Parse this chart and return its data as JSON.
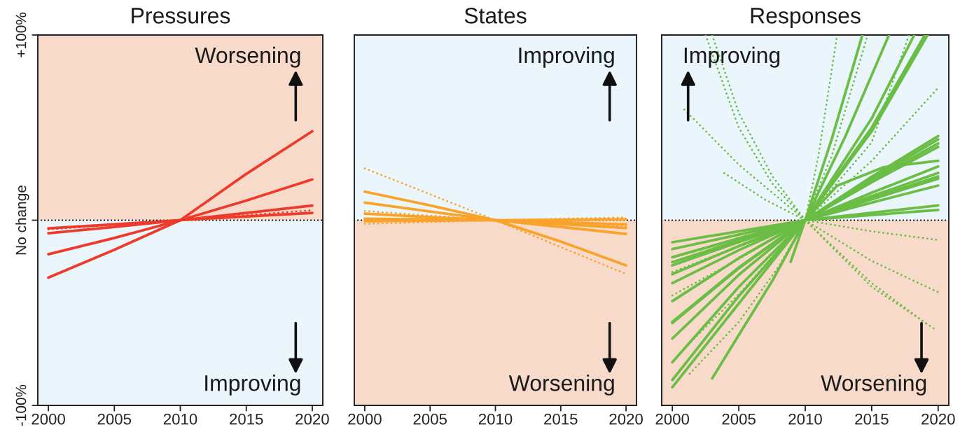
{
  "chart_data": [
    {
      "type": "line",
      "title": "Pressures",
      "x": [
        2000,
        2005,
        2010,
        2015,
        2020
      ],
      "series": [
        {
          "color": "#ee3a2a",
          "values": [
            -31,
            -16,
            0,
            25,
            48
          ]
        },
        {
          "color": "#ee3a2a",
          "values": [
            -18.4,
            -9.6,
            0,
            10.6,
            22
          ]
        },
        {
          "color": "#ee3a2a",
          "values": [
            -7,
            -3.6,
            0,
            3.9,
            7.9
          ]
        },
        {
          "color": "#ee3a2a",
          "values": [
            -4.4,
            -2.2,
            0,
            2,
            3.9
          ]
        },
        {
          "color": "#ee3a2a",
          "line_style": "dotted",
          "x": [
            2000,
            2010,
            2020
          ],
          "values": [
            -5,
            0,
            5.4
          ]
        }
      ],
      "xlim": [
        1999.2,
        2020.8
      ],
      "ylim": [
        -100,
        100
      ],
      "xticks": [
        2000,
        2005,
        2010,
        2015,
        2020
      ],
      "yticks": [
        {
          "value": -100,
          "label": "-100%"
        },
        {
          "value": 0,
          "label": "No change"
        },
        {
          "value": 100,
          "label": "+100%"
        }
      ],
      "bands": [
        {
          "axis": "y",
          "from": 0,
          "to": 100,
          "label": "Worsening",
          "color": "#f8dacb"
        },
        {
          "axis": "y",
          "from": -100,
          "to": 0,
          "label": "Improving",
          "color": "#eaf6fb"
        }
      ],
      "ref_lines": [
        {
          "axis": "y",
          "value": 0,
          "color": "#000000",
          "line_style": "dotted"
        }
      ]
    },
    {
      "type": "line",
      "title": "States",
      "x": [
        2000,
        2005,
        2010,
        2015,
        2020
      ],
      "series": [
        {
          "color": "#f9a32b",
          "values": [
            15.4,
            8,
            0,
            -11.5,
            -24.4
          ]
        },
        {
          "color": "#f9a32b",
          "values": [
            9.5,
            4.7,
            0,
            -3.6,
            -7.4
          ]
        },
        {
          "color": "#f9a32b",
          "values": [
            3.5,
            1.7,
            0,
            -2.1,
            -4.2
          ]
        },
        {
          "color": "#f9a32b",
          "values": [
            0.8,
            0.4,
            0,
            -1.1,
            -2.3
          ]
        },
        {
          "color": "#f9a32b",
          "values": [
            -0.5,
            -0.2,
            0,
            0.2,
            0.5
          ]
        },
        {
          "color": "#f9a32b",
          "line_style": "dotted",
          "values": [
            28,
            14,
            0,
            -14.5,
            -29
          ]
        },
        {
          "color": "#f9a32b",
          "line_style": "dotted",
          "values": [
            5,
            2.5,
            0,
            -1.5,
            -3
          ]
        },
        {
          "color": "#f9a32b",
          "line_style": "dotted",
          "values": [
            -2,
            -1,
            0,
            0.8,
            1.5
          ]
        }
      ],
      "xlim": [
        1999.2,
        2020.8
      ],
      "ylim": [
        -100,
        100
      ],
      "xticks": [
        2000,
        2005,
        2010,
        2015,
        2020
      ],
      "tick_labels": "x",
      "bands": [
        {
          "axis": "y",
          "from": 0,
          "to": 100,
          "label": "Improving",
          "color": "#eaf6fb"
        },
        {
          "axis": "y",
          "from": -100,
          "to": 0,
          "label": "Worsening",
          "color": "#f8dacb"
        }
      ],
      "ref_lines": [
        {
          "axis": "y",
          "value": 0,
          "color": "#000000",
          "line_style": "dotted"
        }
      ]
    },
    {
      "type": "line",
      "title": "Responses",
      "x": [
        2000,
        2005,
        2010,
        2015,
        2020
      ],
      "series": [
        {
          "color": "#6abd45",
          "values": [
            -11.9,
            -6,
            0,
            2.8,
            5.5
          ]
        },
        {
          "color": "#6abd45",
          "values": [
            -15.6,
            -7.8,
            0,
            4,
            8
          ]
        },
        {
          "color": "#6abd45",
          "values": [
            -20,
            -9.8,
            0,
            9.5,
            18.7
          ]
        },
        {
          "color": "#6abd45",
          "values": [
            -22.7,
            -11,
            0,
            11.3,
            22.4
          ]
        },
        {
          "color": "#6abd45",
          "values": [
            -24.4,
            -11.8,
            0,
            12,
            23.6
          ]
        },
        {
          "color": "#6abd45",
          "values": [
            -29.1,
            -14,
            0,
            13,
            25.5
          ]
        },
        {
          "color": "#6abd45",
          "values": [
            -34,
            -16.2,
            0,
            14.8,
            29
          ]
        },
        {
          "color": "#6abd45",
          "values": [
            -43.7,
            -20.5,
            0,
            20.5,
            39.6
          ]
        },
        {
          "color": "#6abd45",
          "values": [
            -54.9,
            -25.5,
            0,
            21.5,
            41.4
          ]
        },
        {
          "color": "#6abd45",
          "values": [
            -55.5,
            -26,
            0,
            22.5,
            43.6
          ]
        },
        {
          "color": "#6abd45",
          "values": [
            -63.9,
            -29.5,
            0,
            23.5,
            45.4
          ]
        },
        {
          "color": "#6abd45",
          "x": [
            2000,
            2005,
            2010,
            2015,
            2019.2
          ],
          "values": [
            -76.7,
            -36,
            0,
            48,
            100
          ]
        },
        {
          "color": "#6abd45",
          "x": [
            2000,
            2005,
            2010,
            2015,
            2019
          ],
          "values": [
            -86.3,
            -41,
            0,
            50,
            100
          ]
        },
        {
          "color": "#6abd45",
          "x": [
            2000,
            2005,
            2010,
            2015,
            2018.2
          ],
          "values": [
            -90.2,
            -45,
            0,
            55,
            100
          ]
        },
        {
          "color": "#6abd45",
          "x": [
            2003,
            2005,
            2007.5,
            2010,
            2013,
            2016.3
          ],
          "values": [
            -85.4,
            -62,
            -33,
            0,
            45,
            100
          ]
        },
        {
          "color": "#6abd45",
          "x": [
            2008.9,
            2010,
            2012,
            2014.3
          ],
          "values": [
            -22.5,
            0,
            44,
            100
          ]
        },
        {
          "color": "#6abd45",
          "x": [
            2005,
            2010,
            2012.4,
            2015.9,
            2020
          ],
          "values": [
            -14,
            0,
            18.6,
            28.6,
            32.1
          ]
        },
        {
          "color": "#6abd45",
          "line_style": "dotted",
          "x": [
            2002.5,
            2005,
            2007.5,
            2010,
            2015,
            2019.7
          ],
          "values": [
            100,
            50,
            20,
            0,
            -36,
            -58.6
          ]
        },
        {
          "color": "#6abd45",
          "line_style": "dotted",
          "x": [
            2003,
            2005,
            2007.5,
            2010,
            2015,
            2019.3
          ],
          "values": [
            100,
            58,
            24,
            0,
            -34,
            -56.8
          ]
        },
        {
          "color": "#6abd45",
          "line_style": "dotted",
          "x": [
            2000.9,
            2005,
            2010,
            2015,
            2020
          ],
          "values": [
            59.8,
            30,
            0,
            -22,
            -38.9
          ]
        },
        {
          "color": "#6abd45",
          "line_style": "dotted",
          "x": [
            2003.9,
            2007,
            2010,
            2015,
            2020
          ],
          "values": [
            25.5,
            11,
            0,
            -6,
            -10.7
          ]
        },
        {
          "color": "#6abd45",
          "line_style": "dotted",
          "x": [
            2001.3,
            2005,
            2008,
            2010,
            2011,
            2012.4
          ],
          "values": [
            -82.9,
            -55,
            -25,
            0,
            35,
            100
          ]
        },
        {
          "color": "#6abd45",
          "line_style": "dotted",
          "x": [
            2000.9,
            2005,
            2010,
            2012,
            2014.7
          ],
          "values": [
            -69.2,
            -40,
            0,
            35,
            100
          ]
        },
        {
          "color": "#6abd45",
          "line_style": "dotted",
          "x": [
            2000,
            2005,
            2010,
            2015,
            2017.8
          ],
          "values": [
            -40.6,
            -21,
            0,
            42,
            100
          ]
        },
        {
          "color": "#6abd45",
          "line_style": "dotted",
          "x": [
            2000,
            2005,
            2010,
            2015,
            2019.9
          ],
          "values": [
            -28,
            -14,
            0,
            32,
            70.7
          ]
        }
      ],
      "xlim": [
        1999.2,
        2020.8
      ],
      "ylim": [
        -100,
        100
      ],
      "xticks": [
        2000,
        2005,
        2010,
        2015,
        2020
      ],
      "tick_labels": "x",
      "bands": [
        {
          "axis": "y",
          "from": 0,
          "to": 100,
          "label": "Improving",
          "color": "#eaf6fb"
        },
        {
          "axis": "y",
          "from": -100,
          "to": 0,
          "label": "Worsening",
          "color": "#f8dacb"
        }
      ],
      "ref_lines": [
        {
          "axis": "y",
          "value": 0,
          "color": "#000000",
          "line_style": "dotted"
        }
      ]
    }
  ]
}
